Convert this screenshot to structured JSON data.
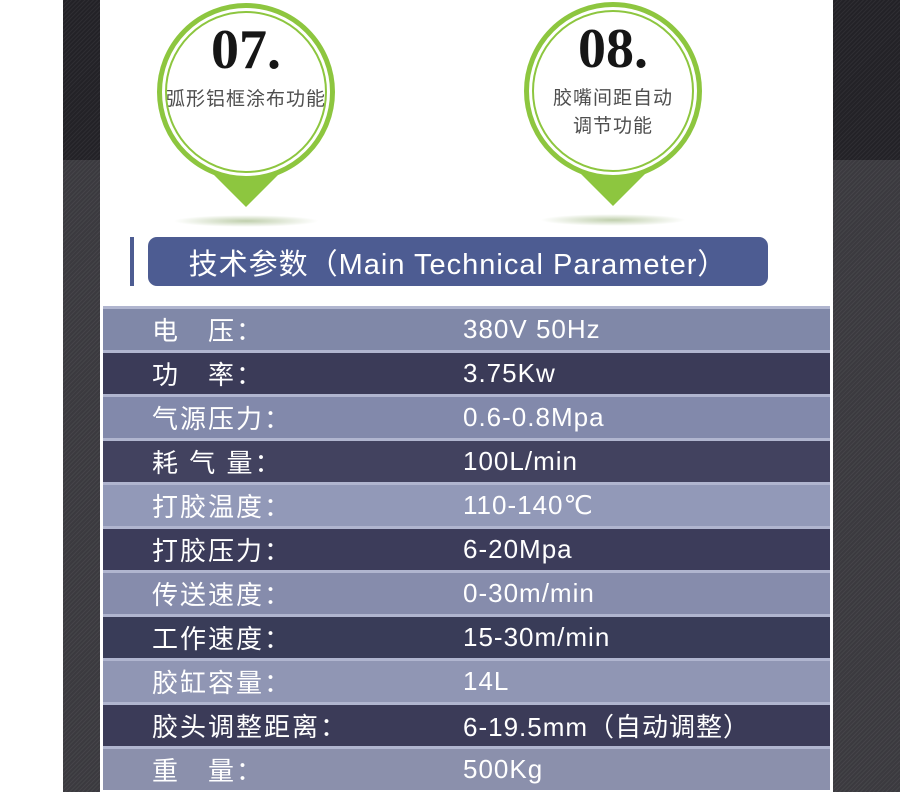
{
  "colors": {
    "accent_green": "#8DC63F",
    "title_bar_bg": "#4D5C92",
    "row_separator": "#B0B5CF",
    "row_text": "#FFFFFF",
    "side_strip_top": "#232227",
    "side_strip_bottom": "#3B3A3F"
  },
  "features": [
    {
      "number": "07.",
      "caption_line1": "弧形铝框涂布功能",
      "caption_line2": ""
    },
    {
      "number": "08.",
      "caption_line1": "胶嘴间距自动",
      "caption_line2": "调节功能"
    }
  ],
  "section": {
    "title": "技术参数（Main Technical Parameter）"
  },
  "table": {
    "rows": [
      {
        "label": "电　压：",
        "value": "380V 50Hz",
        "bg": "#8088A8"
      },
      {
        "label": "功　率：",
        "value": "3.75Kw",
        "bg": "#3B3B58"
      },
      {
        "label": "气源压力：",
        "value": "0.6-0.8Mpa",
        "bg": "#8289AB"
      },
      {
        "label": "耗 气 量：",
        "value": "100L/min",
        "bg": "#42425F"
      },
      {
        "label": "打胶温度：",
        "value": "110-140℃",
        "bg": "#9299B8"
      },
      {
        "label": "打胶压力：",
        "value": "6-20Mpa",
        "bg": "#3C3C5A"
      },
      {
        "label": "传送速度：",
        "value": "0-30m/min",
        "bg": "#868CAC"
      },
      {
        "label": "工作速度：",
        "value": "15-30m/min",
        "bg": "#393C58"
      },
      {
        "label": "胶缸容量：",
        "value": "14L",
        "bg": "#9096B4"
      },
      {
        "label": "胶头调整距离：",
        "value": "6-19.5mm（自动调整）",
        "bg": "#3B3B58"
      },
      {
        "label": "重　量：",
        "value": "500Kg",
        "bg": "#8B90AC"
      }
    ]
  }
}
